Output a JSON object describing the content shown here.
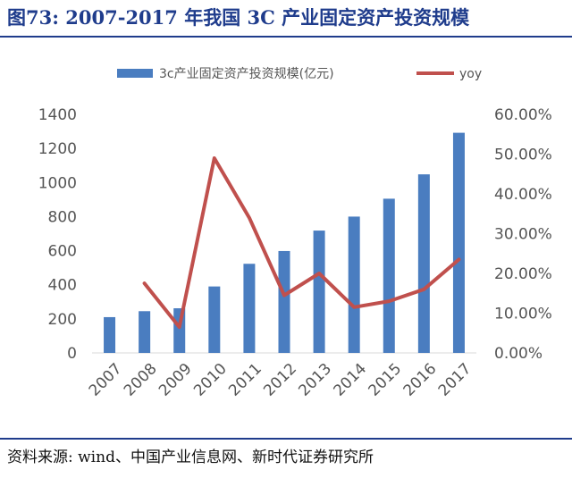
{
  "figure": {
    "title": "图73:    2007-2017 年我国 3C 产业固定资产投资规模",
    "source": "资料来源: wind、中国产业信息网、新时代证券研究所"
  },
  "colors": {
    "bar": "#4a7dc0",
    "line": "#c0504d",
    "title": "#1f3c8c",
    "axis_text": "#555555"
  },
  "chart_data": {
    "type": "bar",
    "categories": [
      "2007",
      "2008",
      "2009",
      "2010",
      "2011",
      "2012",
      "2013",
      "2014",
      "2015",
      "2016",
      "2017"
    ],
    "series": [
      {
        "name": "3c产业固定资产投资规模(亿元)",
        "type": "bar",
        "axis": "left",
        "values": [
          210,
          245,
          262,
          390,
          523,
          598,
          718,
          800,
          905,
          1048,
          1292
        ]
      },
      {
        "name": "yoy",
        "type": "line",
        "axis": "right",
        "values": [
          null,
          17.5,
          6.5,
          49.0,
          34.0,
          14.5,
          20.0,
          11.5,
          13.0,
          16.0,
          23.5
        ]
      }
    ],
    "y_left": {
      "min": 0,
      "max": 1400,
      "ticks": [
        "0",
        "200",
        "400",
        "600",
        "800",
        "1000",
        "1200",
        "1400"
      ]
    },
    "y_right": {
      "min": 0,
      "max": 60,
      "ticks": [
        "0.00%",
        "10.00%",
        "20.00%",
        "30.00%",
        "40.00%",
        "50.00%",
        "60.00%"
      ]
    },
    "legend": "top",
    "grid": false
  }
}
